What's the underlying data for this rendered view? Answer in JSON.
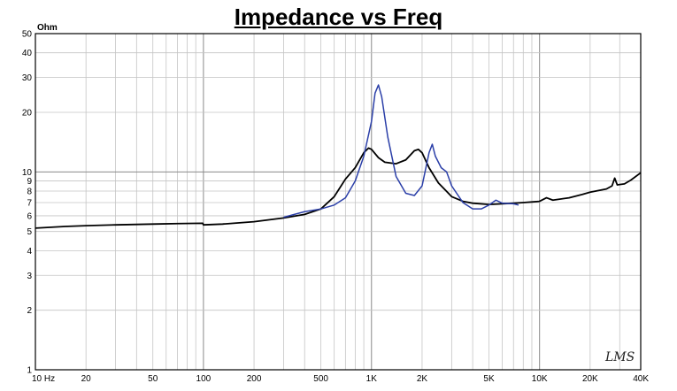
{
  "chart_data": {
    "type": "line",
    "title": "Impedance vs Freq",
    "ylabel": "Ohm",
    "xscale": "log",
    "yscale": "log",
    "xlim": [
      10,
      40000
    ],
    "ylim": [
      1,
      50
    ],
    "grid": true,
    "x_tick_labels": [
      "10 Hz",
      "20",
      "50",
      "100",
      "200",
      "500",
      "1K",
      "2K",
      "5K",
      "10K",
      "20K",
      "40K"
    ],
    "x_tick_values": [
      10,
      20,
      50,
      100,
      200,
      500,
      1000,
      2000,
      5000,
      10000,
      20000,
      40000
    ],
    "y_tick_labels": [
      "1",
      "2",
      "3",
      "4",
      "5",
      "6",
      "7",
      "8",
      "9",
      "10",
      "20",
      "30",
      "40",
      "50"
    ],
    "y_tick_values": [
      1,
      2,
      3,
      4,
      5,
      6,
      7,
      8,
      9,
      10,
      20,
      30,
      40,
      50
    ],
    "watermark": "LMS",
    "series": [
      {
        "color": "#000000",
        "points": [
          [
            10,
            5.2
          ],
          [
            15,
            5.3
          ],
          [
            20,
            5.35
          ],
          [
            30,
            5.4
          ],
          [
            50,
            5.45
          ],
          [
            70,
            5.48
          ],
          [
            99,
            5.5
          ],
          [
            100,
            5.4
          ],
          [
            130,
            5.45
          ],
          [
            200,
            5.6
          ],
          [
            300,
            5.85
          ],
          [
            400,
            6.1
          ],
          [
            500,
            6.5
          ],
          [
            600,
            7.5
          ],
          [
            700,
            9.2
          ],
          [
            800,
            10.5
          ],
          [
            900,
            12.5
          ],
          [
            960,
            13.2
          ],
          [
            1000,
            13.0
          ],
          [
            1100,
            11.8
          ],
          [
            1200,
            11.2
          ],
          [
            1400,
            11.0
          ],
          [
            1600,
            11.5
          ],
          [
            1800,
            12.8
          ],
          [
            1900,
            13.0
          ],
          [
            2000,
            12.5
          ],
          [
            2200,
            10.5
          ],
          [
            2500,
            8.8
          ],
          [
            3000,
            7.5
          ],
          [
            3500,
            7.1
          ],
          [
            4000,
            6.95
          ],
          [
            5000,
            6.85
          ],
          [
            6000,
            6.9
          ],
          [
            7000,
            6.95
          ],
          [
            8000,
            7.0
          ],
          [
            9000,
            7.05
          ],
          [
            10000,
            7.1
          ],
          [
            11000,
            7.4
          ],
          [
            12000,
            7.2
          ],
          [
            15000,
            7.4
          ],
          [
            18000,
            7.7
          ],
          [
            20000,
            7.9
          ],
          [
            25000,
            8.2
          ],
          [
            27000,
            8.5
          ],
          [
            28000,
            9.3
          ],
          [
            29000,
            8.6
          ],
          [
            32000,
            8.7
          ],
          [
            35000,
            9.1
          ],
          [
            40000,
            9.9
          ]
        ]
      },
      {
        "color": "#2b3fa8",
        "points": [
          [
            300,
            5.9
          ],
          [
            400,
            6.3
          ],
          [
            500,
            6.5
          ],
          [
            600,
            6.8
          ],
          [
            700,
            7.4
          ],
          [
            800,
            9.0
          ],
          [
            900,
            12.0
          ],
          [
            1000,
            18.0
          ],
          [
            1050,
            25.0
          ],
          [
            1100,
            27.5
          ],
          [
            1150,
            24.0
          ],
          [
            1250,
            15.0
          ],
          [
            1400,
            9.5
          ],
          [
            1600,
            7.8
          ],
          [
            1800,
            7.6
          ],
          [
            2000,
            8.5
          ],
          [
            2200,
            12.5
          ],
          [
            2300,
            13.8
          ],
          [
            2400,
            12.0
          ],
          [
            2600,
            10.5
          ],
          [
            2800,
            10.0
          ],
          [
            3000,
            8.5
          ],
          [
            3500,
            7.0
          ],
          [
            4000,
            6.5
          ],
          [
            4500,
            6.5
          ],
          [
            5000,
            6.8
          ],
          [
            5500,
            7.2
          ],
          [
            6000,
            6.95
          ],
          [
            7000,
            6.9
          ],
          [
            7500,
            6.8
          ]
        ]
      }
    ]
  }
}
